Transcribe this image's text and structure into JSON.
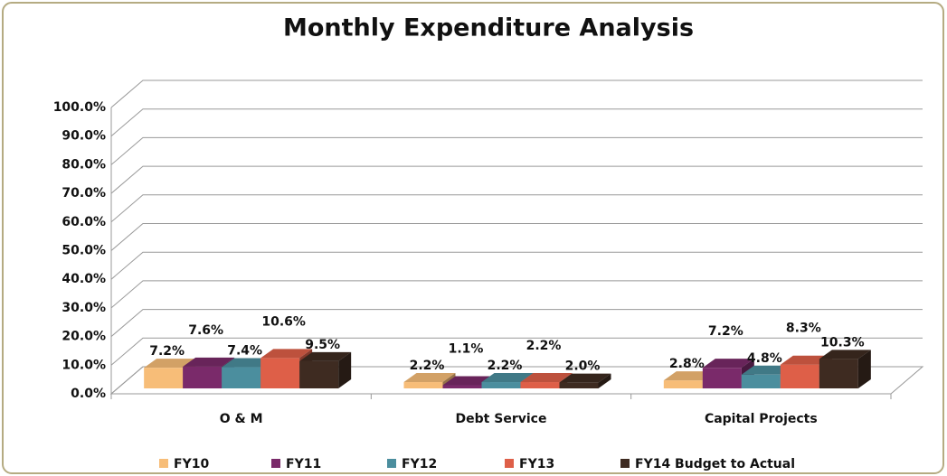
{
  "chart_data": {
    "type": "bar3d",
    "title": "Monthly Expenditure Analysis",
    "categories": [
      "O & M",
      "Debt Service",
      "Capital Projects"
    ],
    "series": [
      {
        "name": "FY10",
        "color": "#f7bd78",
        "values": [
          7.2,
          2.2,
          2.8
        ],
        "value_labels": [
          "7.2%",
          "2.2%",
          "2.8%"
        ]
      },
      {
        "name": "FY11",
        "color": "#7a2a6a",
        "values": [
          7.6,
          1.1,
          7.2
        ],
        "value_labels": [
          "7.6%",
          "1.1%",
          "7.2%"
        ]
      },
      {
        "name": "FY12",
        "color": "#4b8e9e",
        "values": [
          7.4,
          2.2,
          4.8
        ],
        "value_labels": [
          "7.4%",
          "2.2%",
          "4.8%"
        ]
      },
      {
        "name": "FY13",
        "color": "#de5f48",
        "values": [
          10.6,
          2.2,
          8.3
        ],
        "value_labels": [
          "10.6%",
          "2.2%",
          "8.3%"
        ]
      },
      {
        "name": "FY14 Budget to Actual",
        "color": "#3e2b21",
        "values": [
          9.5,
          2.0,
          10.3
        ],
        "value_labels": [
          "9.5%",
          "2.0%",
          "10.3%"
        ]
      }
    ],
    "ylim": [
      0,
      100
    ],
    "yticks": [
      {
        "value": 0,
        "label": "0.0%"
      },
      {
        "value": 10,
        "label": "10.0%"
      },
      {
        "value": 20,
        "label": "20.0%"
      },
      {
        "value": 30,
        "label": "30.0%"
      },
      {
        "value": 40,
        "label": "40.0%"
      },
      {
        "value": 50,
        "label": "50.0%"
      },
      {
        "value": 60,
        "label": "60.0%"
      },
      {
        "value": 70,
        "label": "70.0%"
      },
      {
        "value": 80,
        "label": "80.0%"
      },
      {
        "value": 90,
        "label": "90.0%"
      },
      {
        "value": 100,
        "label": "100.0%"
      }
    ],
    "grid": true,
    "legend": "bottom"
  }
}
